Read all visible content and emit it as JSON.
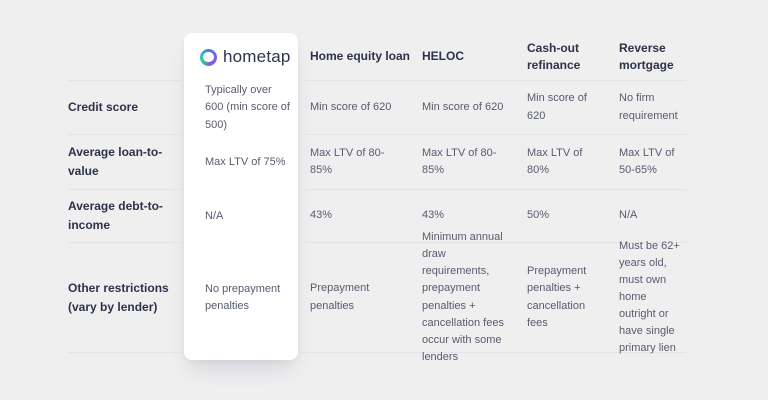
{
  "brand": {
    "name": "hometap"
  },
  "table": {
    "columns": [
      {
        "label": "Home equity loan"
      },
      {
        "label": "HELOC"
      },
      {
        "label": "Cash-out refinance"
      },
      {
        "label": "Reverse mortgage"
      }
    ],
    "rows": [
      {
        "label": "Credit score",
        "hometap": "Typically over 600 (min score of 500)",
        "cells": [
          "Min score of 620",
          "Min score of 620",
          "Min score of 620",
          "No firm requirement"
        ]
      },
      {
        "label": "Average loan-to-value",
        "hometap": "Max LTV of 75%",
        "cells": [
          "Max LTV of 80-85%",
          "Max LTV of 80-85%",
          "Max LTV of 80%",
          "Max LTV of 50-65%"
        ]
      },
      {
        "label": "Average debt-to-income",
        "hometap": "N/A",
        "cells": [
          "43%",
          "43%",
          "50%",
          "N/A"
        ]
      },
      {
        "label": "Other restrictions",
        "sublabel": "(vary by lender)",
        "hometap": "No prepayment penalties",
        "cells": [
          "Prepayment penalties",
          "Minimum annual draw requirements, prepayment penalties + cancellation fees occur with some lenders",
          "Prepayment penalties + cancellation fees",
          "Must be 62+ years old, must own home outright or have single primary lien"
        ]
      }
    ]
  }
}
